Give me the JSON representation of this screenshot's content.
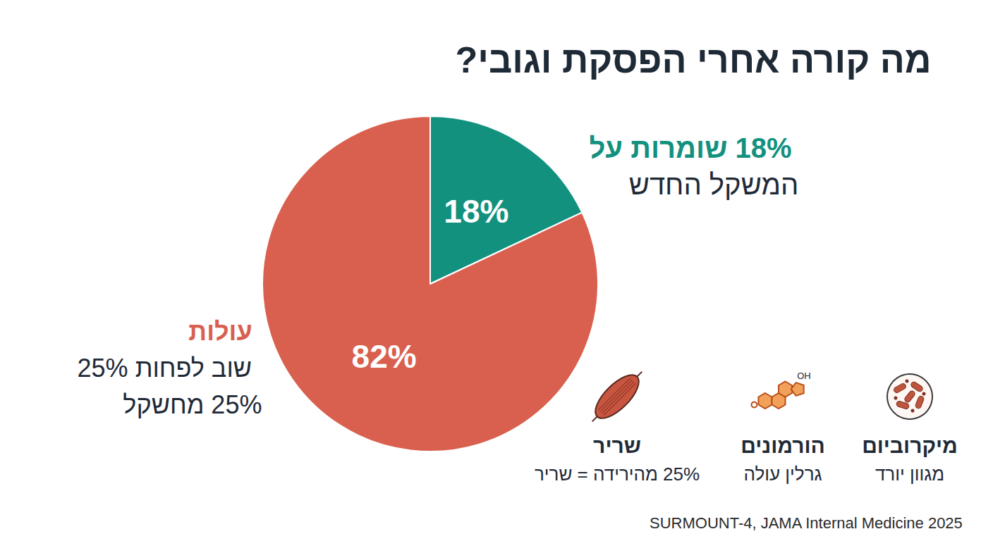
{
  "chart_data": {
    "type": "pie",
    "title": "מה קורה אחרי הפסקת וגובי?",
    "values": [
      18,
      82
    ],
    "value_labels": [
      "18%",
      "82%"
    ],
    "colors": [
      "#13917f",
      "#d9604f"
    ],
    "data_labels": true,
    "annotations": [
      {
        "heading": "18% שומרות על",
        "lines": [
          "המשקל החדש"
        ],
        "color": "#13917f"
      },
      {
        "heading": "עולות",
        "lines": [
          "שוב לפחות 25%",
          "25% מחשקל"
        ],
        "color": "#d9604f"
      }
    ],
    "factors": [
      {
        "heading": "מיקרוביום",
        "text": "מגוון יורד"
      },
      {
        "heading": "הורמונים",
        "text": "גרלין עולה",
        "icon_text": "OH"
      },
      {
        "heading": "שריר",
        "text": "25% מהירידה = שריר"
      }
    ],
    "source": "SURMOUNT-4, JAMA Internal Medicine 2025"
  }
}
